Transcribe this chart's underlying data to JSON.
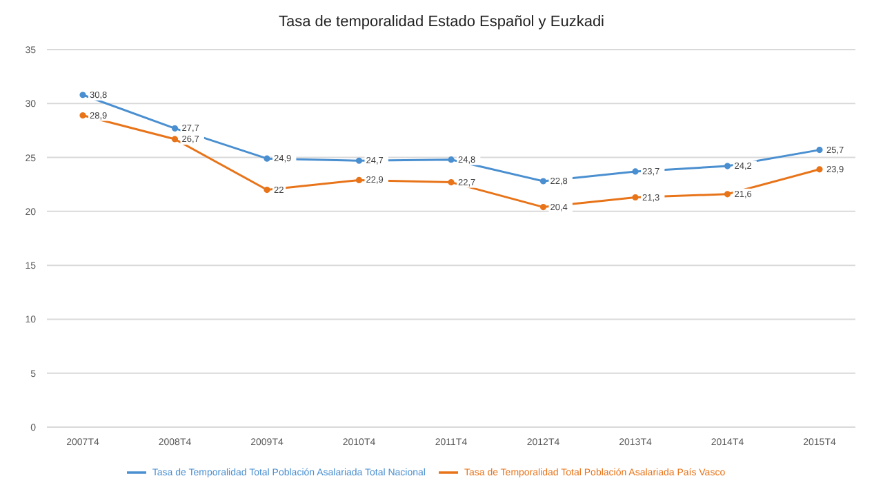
{
  "chart_data": {
    "type": "line",
    "title": "Tasa de temporalidad Estado Español y Euzkadi",
    "categories": [
      "2007T4",
      "2008T4",
      "2009T4",
      "2010T4",
      "2011T4",
      "2012T4",
      "2013T4",
      "2014T4",
      "2015T4"
    ],
    "series": [
      {
        "name": "Tasa de Temporalidad Total Población Asalariada Total Nacional",
        "color": "#4a8fd0",
        "values": [
          30.8,
          27.7,
          24.9,
          24.7,
          24.8,
          22.8,
          23.7,
          24.2,
          25.7
        ],
        "value_labels": [
          "30,8",
          "27,7",
          "24,9",
          "24,7",
          "24,8",
          "22,8",
          "23,7",
          "24,2",
          "25,7"
        ]
      },
      {
        "name": "Tasa de Temporalidad Total Población Asalariada País Vasco",
        "color": "#e8741a",
        "values": [
          28.9,
          26.7,
          22,
          22.9,
          22.7,
          20.4,
          21.3,
          21.6,
          23.9
        ],
        "value_labels": [
          "28,9",
          "26,7",
          "22",
          "22,9",
          "22,7",
          "20,4",
          "21,3",
          "21,6",
          "23,9"
        ]
      }
    ],
    "ylim": [
      0,
      35
    ],
    "yticks": [
      0,
      5,
      10,
      15,
      20,
      25,
      30,
      35
    ],
    "grid": "y",
    "legend": "bottom",
    "marker": "circle",
    "line_style": "solid"
  }
}
